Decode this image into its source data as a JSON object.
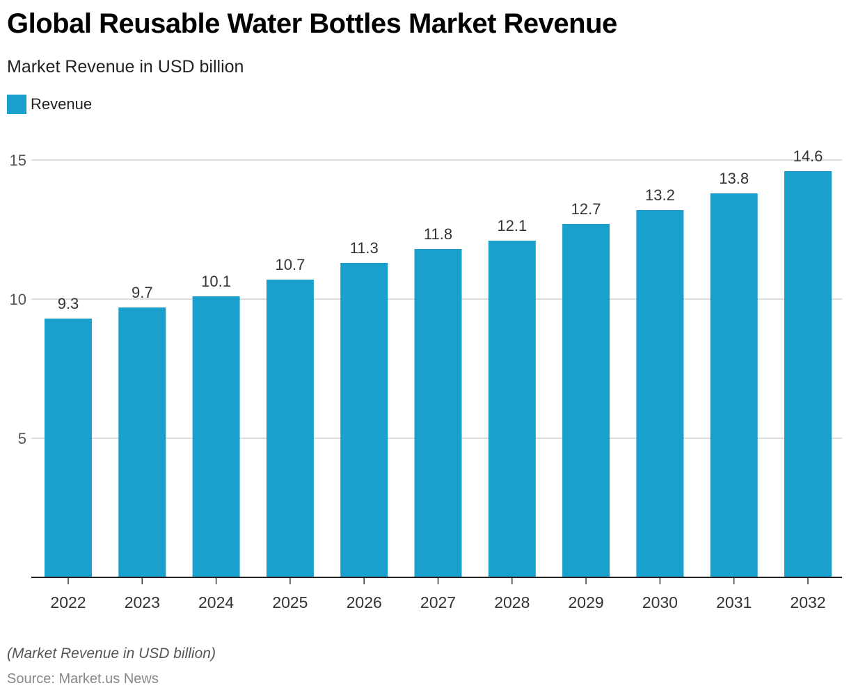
{
  "header": {
    "title": "Global Reusable Water Bottles Market Revenue",
    "subtitle": "Market Revenue in USD billion"
  },
  "legend": {
    "label": "Revenue",
    "color": "#1aa0cc"
  },
  "footer": {
    "note": "(Market Revenue in USD billion)",
    "source": "Source: Market.us News"
  },
  "chart_data": {
    "type": "bar",
    "title": "Global Reusable Water Bottles Market Revenue",
    "subtitle": "Market Revenue in USD billion",
    "xlabel": "",
    "ylabel": "",
    "categories": [
      "2022",
      "2023",
      "2024",
      "2025",
      "2026",
      "2027",
      "2028",
      "2029",
      "2030",
      "2031",
      "2032"
    ],
    "series": [
      {
        "name": "Revenue",
        "values": [
          9.3,
          9.7,
          10.1,
          10.7,
          11.3,
          11.8,
          12.1,
          12.7,
          13.2,
          13.8,
          14.6
        ],
        "color": "#1aa0cc"
      }
    ],
    "data_labels": [
      "9.3",
      "9.7",
      "10.1",
      "10.7",
      "11.3",
      "11.8",
      "12.1",
      "12.7",
      "13.2",
      "13.8",
      "14.6"
    ],
    "ylim": [
      0,
      15
    ],
    "yticks": [
      5,
      10,
      15
    ],
    "ytick_labels": [
      "5",
      "10",
      "15"
    ],
    "grid": true,
    "legend_position": "top-left"
  }
}
